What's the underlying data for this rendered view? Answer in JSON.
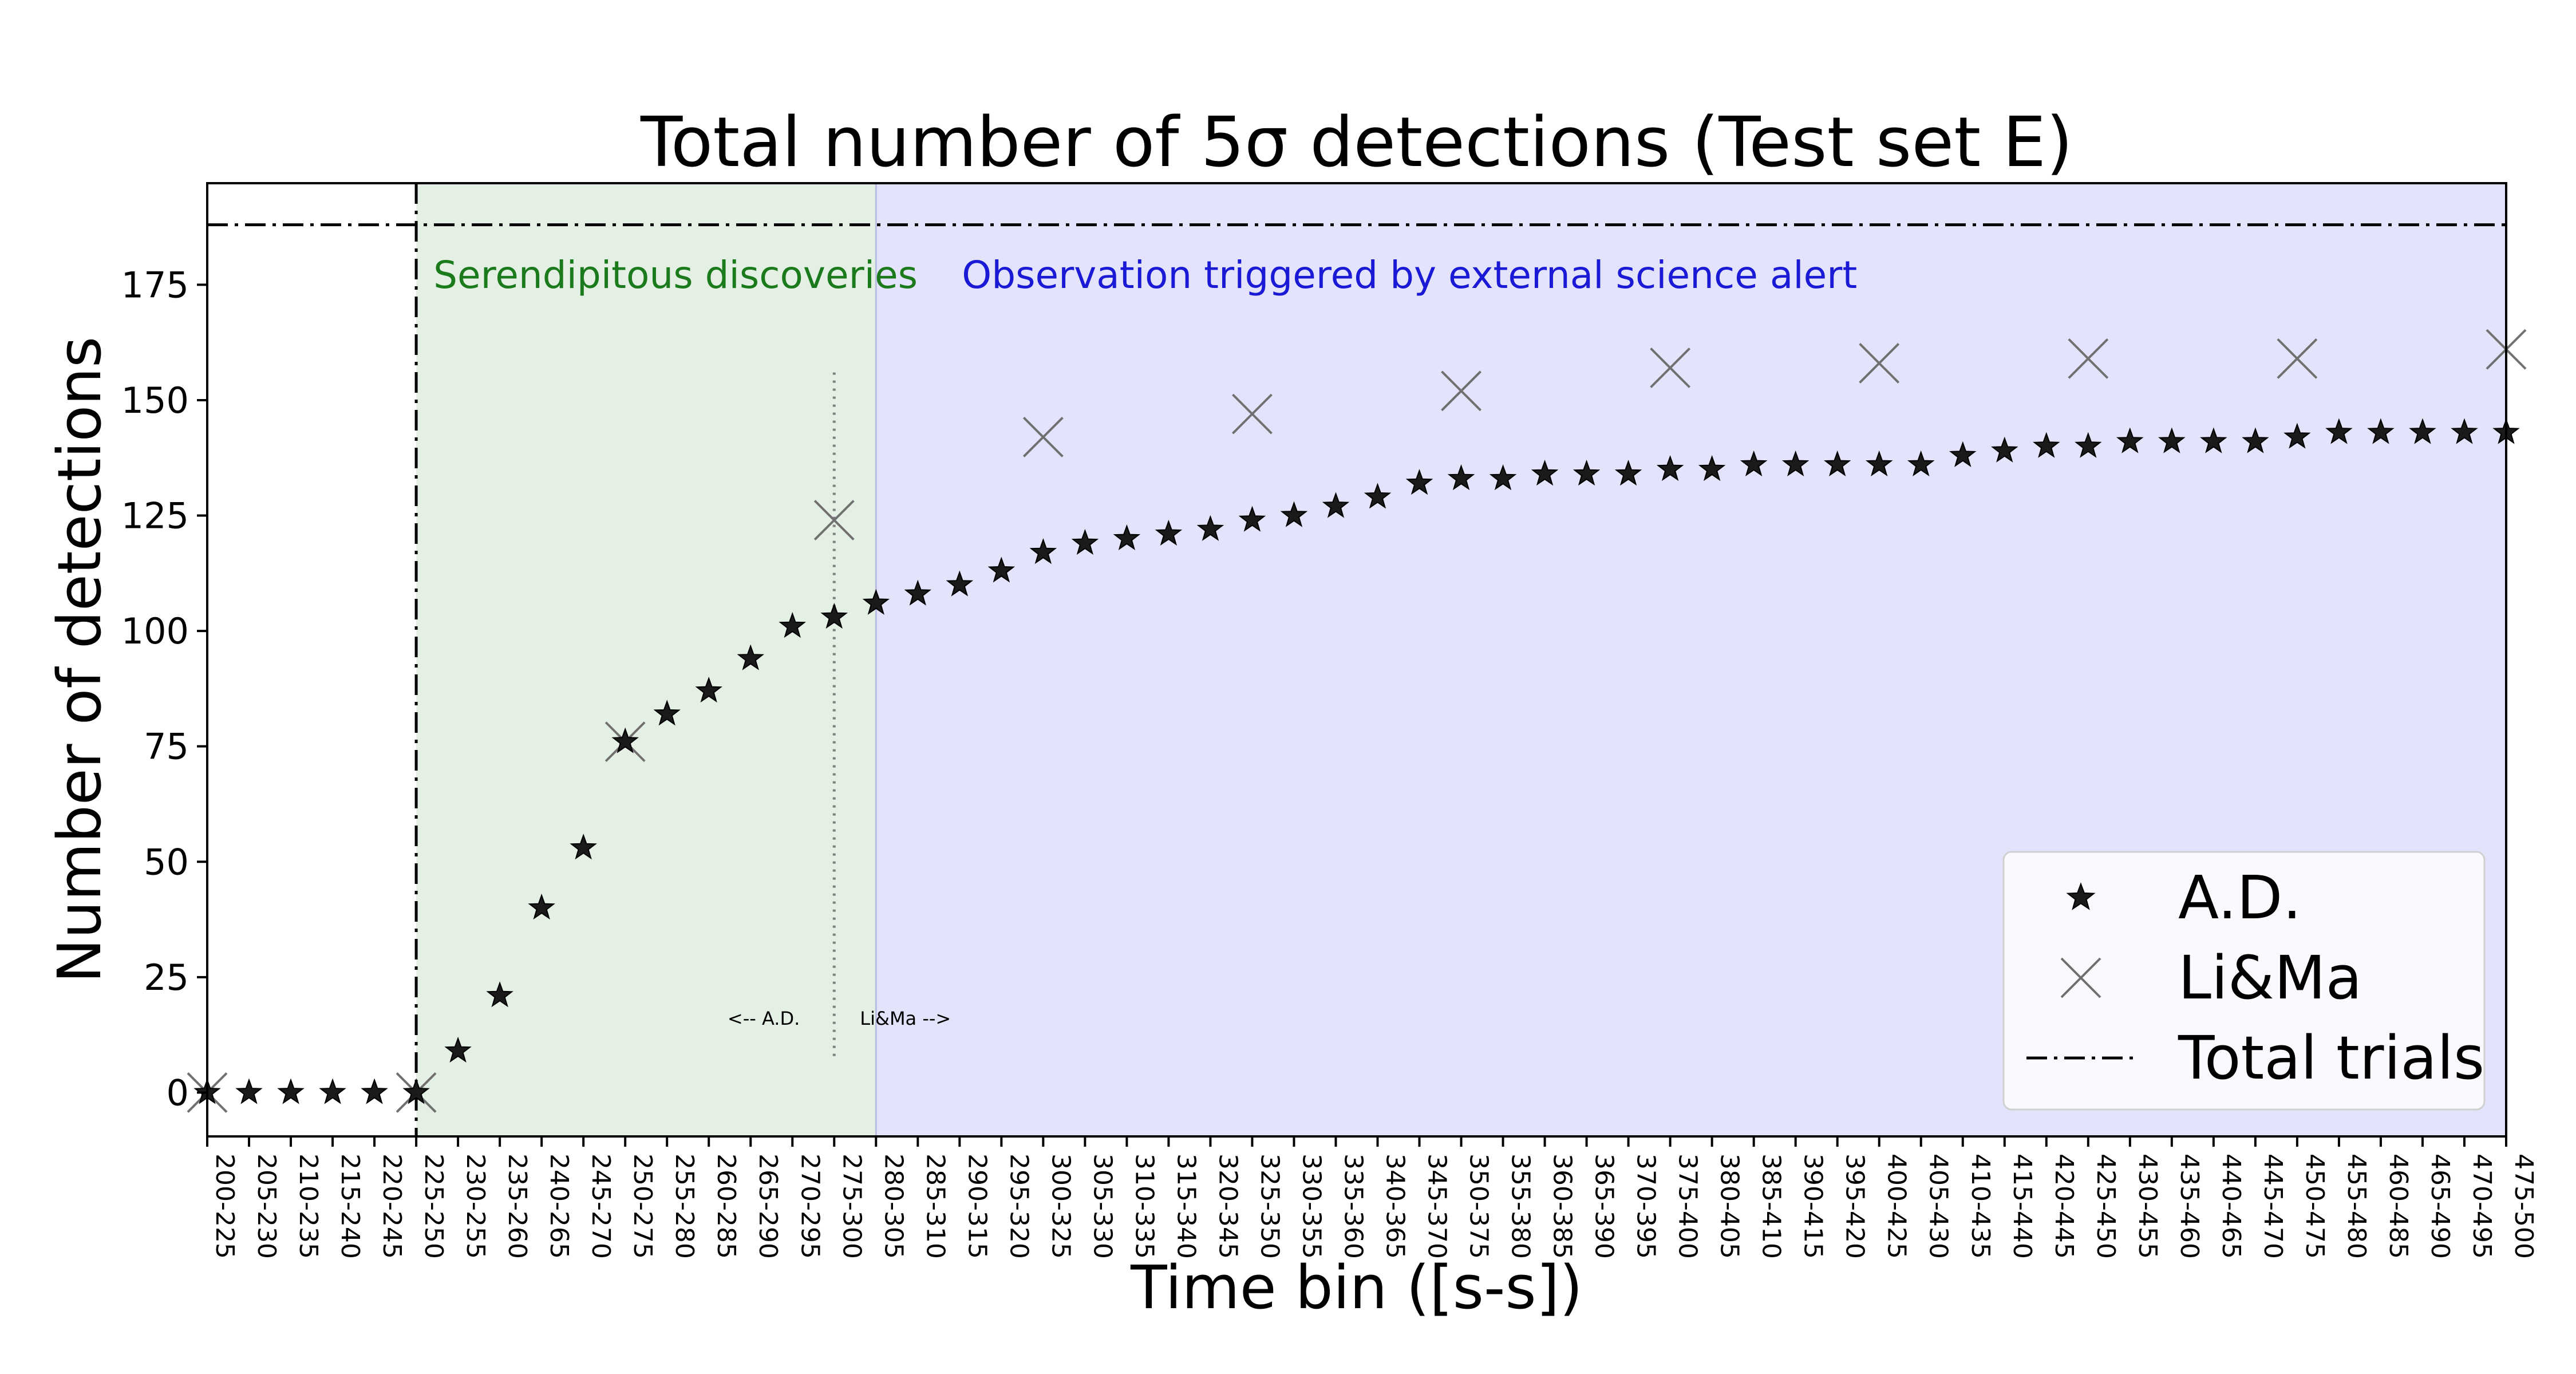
{
  "chart_data": {
    "type": "scatter",
    "title": "Total number of 5σ detections (Test set E)",
    "xlabel": "Time bin ([s-s])",
    "ylabel": "Number of detections",
    "categories": [
      "200-225",
      "205-230",
      "210-235",
      "215-240",
      "220-245",
      "225-250",
      "230-255",
      "235-260",
      "240-265",
      "245-270",
      "250-275",
      "255-280",
      "260-285",
      "265-290",
      "270-295",
      "275-300",
      "280-305",
      "285-310",
      "290-315",
      "295-320",
      "300-325",
      "305-330",
      "310-335",
      "315-340",
      "320-345",
      "325-350",
      "330-355",
      "335-360",
      "340-365",
      "345-370",
      "350-375",
      "355-380",
      "360-385",
      "365-390",
      "370-395",
      "375-400",
      "380-405",
      "385-410",
      "390-415",
      "395-420",
      "400-425",
      "405-430",
      "410-435",
      "415-440",
      "420-445",
      "425-450",
      "430-455",
      "435-460",
      "440-465",
      "445-470",
      "450-475",
      "455-480",
      "460-485",
      "465-490",
      "470-495",
      "475-500"
    ],
    "ylim": [
      -9.5,
      197
    ],
    "yticks": [
      0,
      25,
      50,
      75,
      100,
      125,
      150,
      175
    ],
    "series": [
      {
        "name": "A.D.",
        "marker": "star",
        "color": "#1a1a1a",
        "values": [
          0,
          0,
          0,
          0,
          0,
          0,
          9,
          21,
          40,
          53,
          76,
          82,
          87,
          94,
          101,
          103,
          106,
          108,
          110,
          113,
          117,
          119,
          120,
          121,
          122,
          124,
          125,
          127,
          129,
          132,
          133,
          133,
          134,
          134,
          134,
          135,
          135,
          136,
          136,
          136,
          136,
          136,
          138,
          139,
          140,
          140,
          141,
          141,
          141,
          141,
          142,
          143,
          143,
          143,
          143,
          143
        ]
      },
      {
        "name": "Li&Ma",
        "marker": "x",
        "color": "#707070",
        "points": [
          {
            "x": "200-225",
            "y": 0
          },
          {
            "x": "225-250",
            "y": 0
          },
          {
            "x": "250-275",
            "y": 76
          },
          {
            "x": "275-300",
            "y": 124
          },
          {
            "x": "300-325",
            "y": 142
          },
          {
            "x": "325-350",
            "y": 147
          },
          {
            "x": "350-375",
            "y": 152
          },
          {
            "x": "375-400",
            "y": 157
          },
          {
            "x": "400-425",
            "y": 158
          },
          {
            "x": "425-450",
            "y": 159
          },
          {
            "x": "450-475",
            "y": 159
          },
          {
            "x": "475-500",
            "y": 161
          }
        ]
      },
      {
        "name": "Total trials",
        "style": "dash-dot",
        "color": "#000000",
        "value": 188
      }
    ],
    "regions": [
      {
        "label": "Serendipitous discoveries",
        "from": "225-250",
        "to": "280-305",
        "color": "#e5f0e5",
        "text_color": "#1b7a1b"
      },
      {
        "label": "Observation triggered by external science alert",
        "from": "280-305",
        "to": "475-500",
        "color": "#e3e3fb",
        "text_color": "#1a1ad6"
      }
    ],
    "divider": {
      "at": "225-250",
      "style": "dash-dot"
    },
    "crossover": {
      "at": "275-300",
      "y_from": 7,
      "y_to": 156,
      "left_label": "<-- A.D.",
      "right_label": "Li&Ma -->"
    },
    "legend": {
      "position": "bottom-right",
      "entries": [
        "A.D.",
        "Li&Ma",
        "Total trials"
      ]
    },
    "grid": false
  }
}
